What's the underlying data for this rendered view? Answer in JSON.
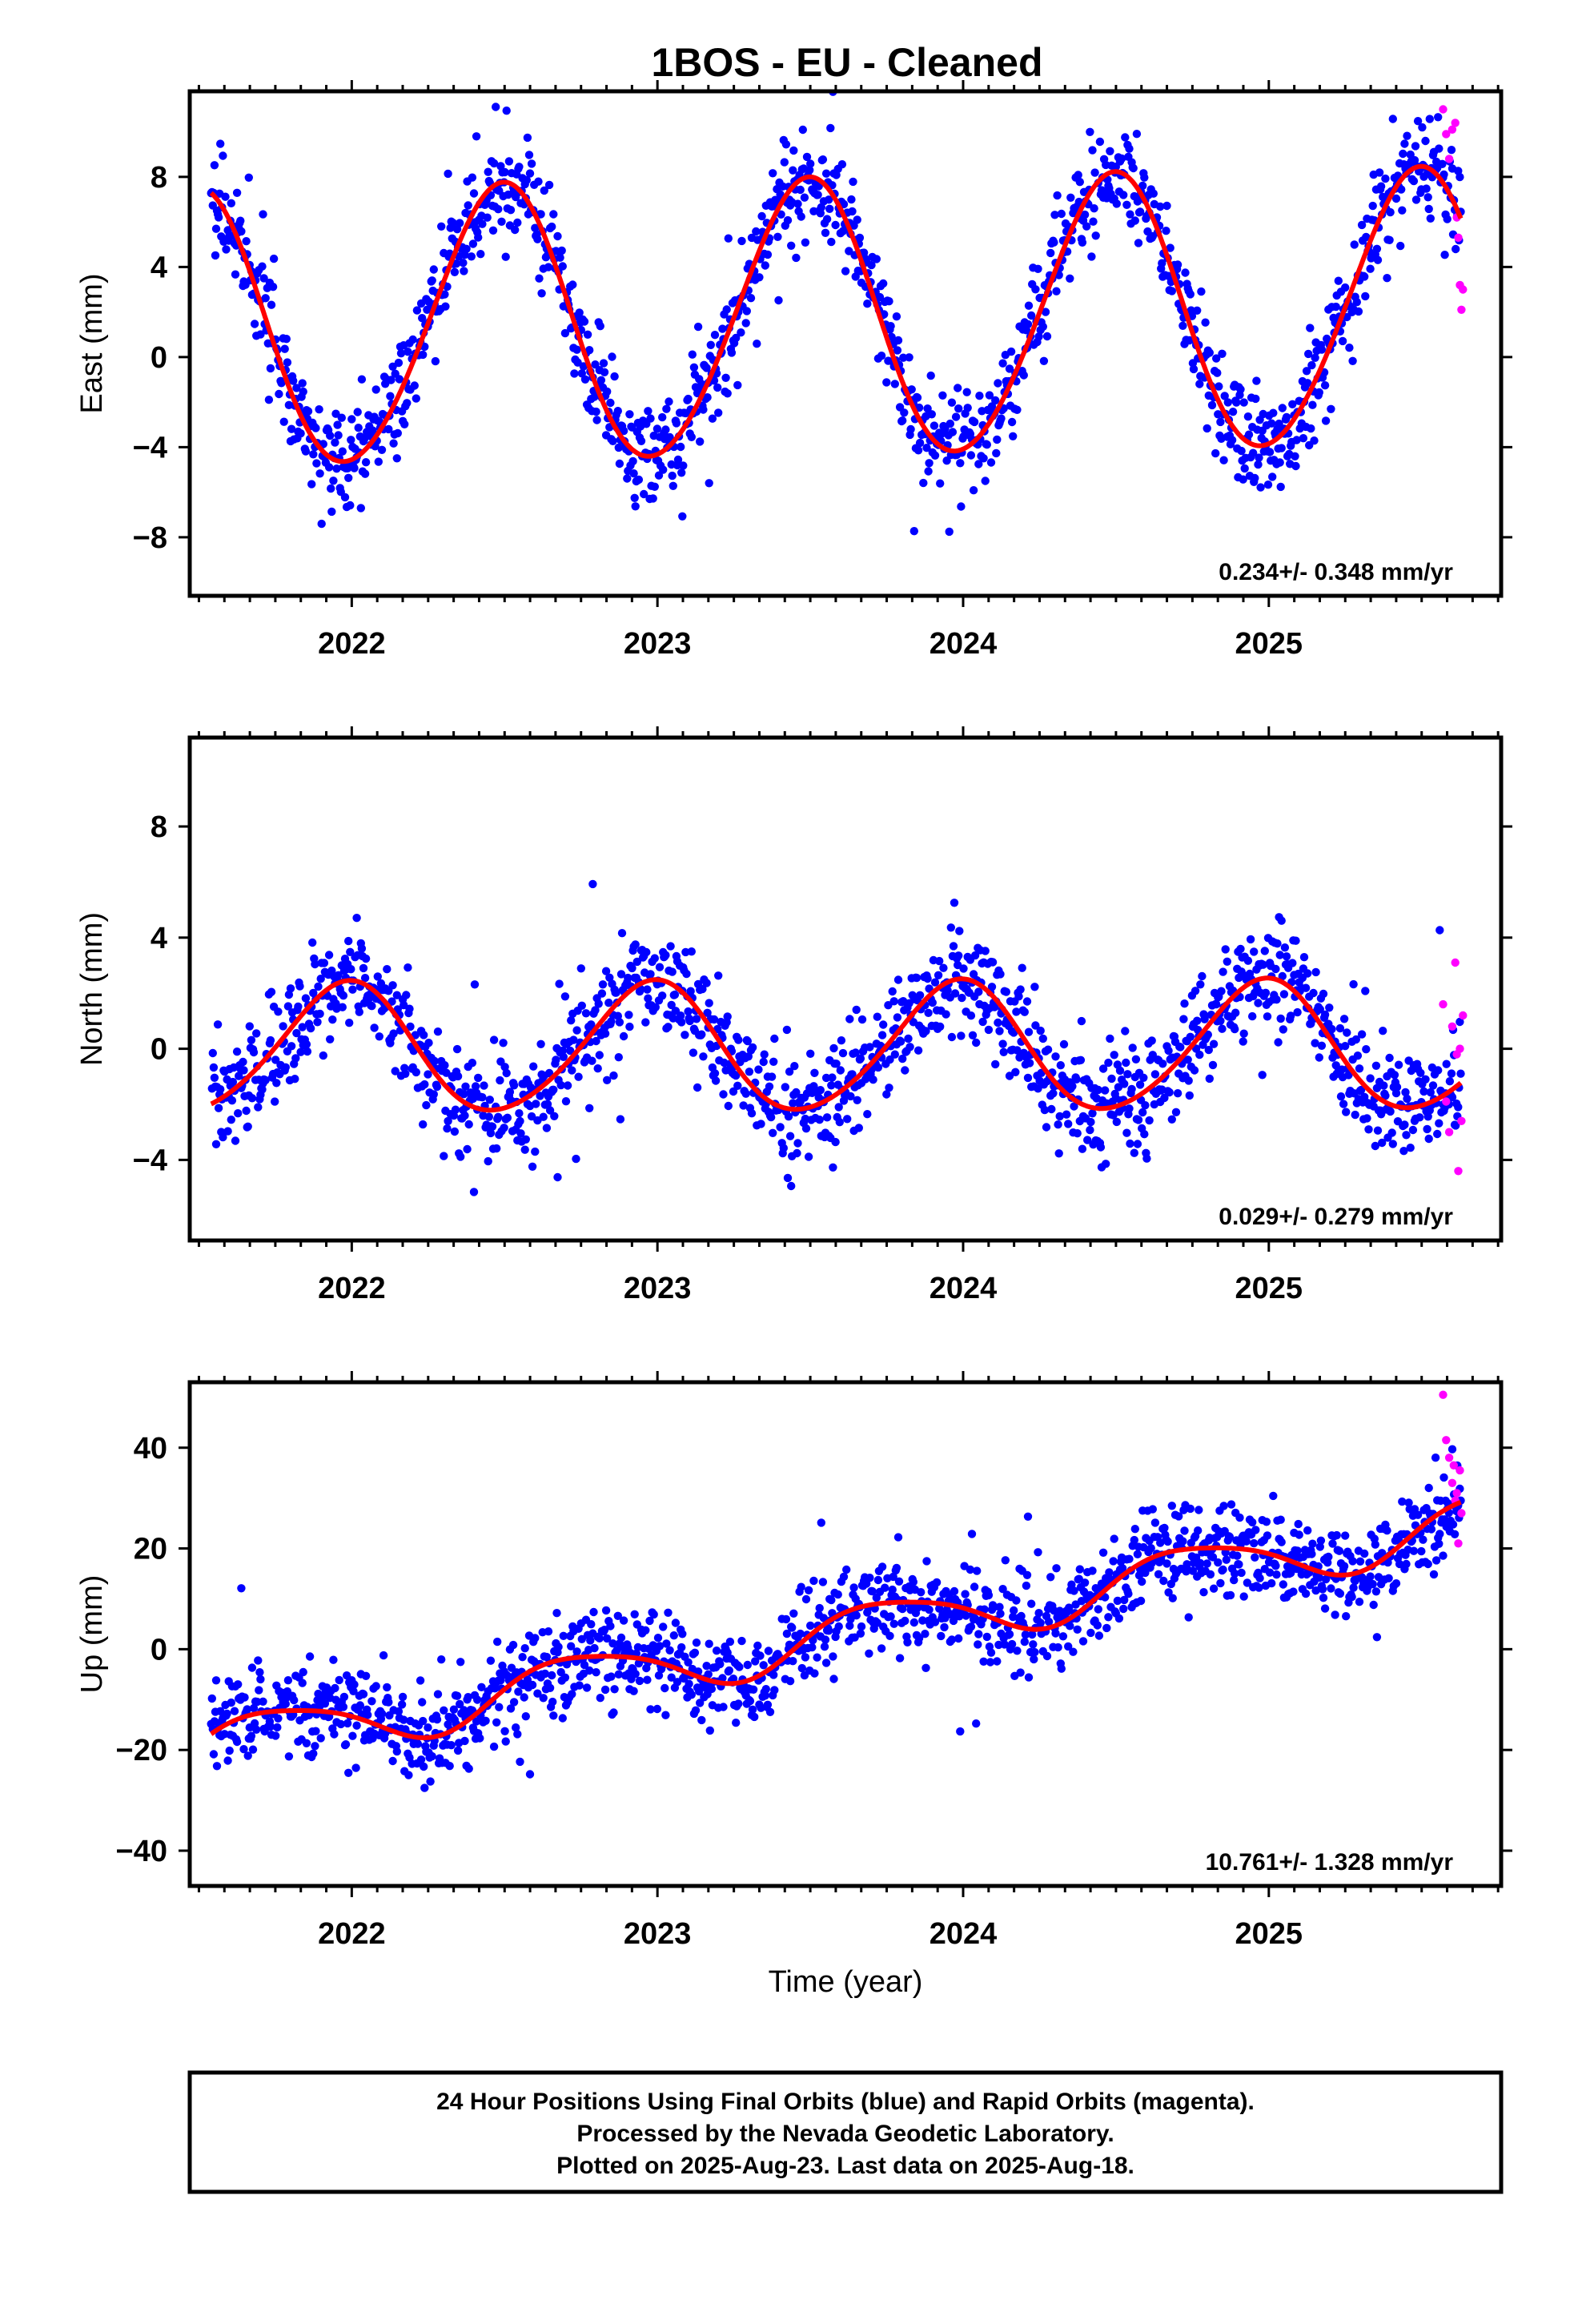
{
  "title": "1BOS  - EU - Cleaned",
  "colors": {
    "final": "#0000ff",
    "rapid": "#ff00ff",
    "model": "#ff0000",
    "frame": "#000000"
  },
  "legend": {
    "lines": [
      "24 Hour Positions Using Final Orbits (blue) and Rapid Orbits (magenta).",
      "Processed by the Nevada Geodetic Laboratory.",
      "Plotted on 2025-Aug-23. Last data on 2025-Aug-18."
    ]
  },
  "chart_data": [
    {
      "type": "scatter",
      "id": "east",
      "ylabel": "East (mm)",
      "xlabel": "",
      "xlim": [
        2021.47,
        2025.76
      ],
      "ylim": [
        -10.6,
        11.8
      ],
      "yticks": [
        -8,
        -4,
        0,
        4,
        8
      ],
      "xticks": [
        2022,
        2023,
        2024,
        2025
      ],
      "rate_label": "0.234+/- 0.348 mm/yr",
      "model": {
        "offset": 1.6,
        "trend": 0.234,
        "annual_cos": -6.1,
        "annual_sin": 0.5,
        "semi_cos": 0.3,
        "semi_sin": 0.2,
        "noise": 1.15,
        "t0": 2023.5,
        "start": 2021.54,
        "end": 2025.63
      },
      "rapid_points": [
        [
          2025.57,
          11.0
        ],
        [
          2025.58,
          9.9
        ],
        [
          2025.59,
          8.8
        ],
        [
          2025.6,
          10.1
        ],
        [
          2025.61,
          10.4
        ],
        [
          2025.615,
          6.2
        ],
        [
          2025.62,
          5.3
        ],
        [
          2025.625,
          3.2
        ],
        [
          2025.63,
          2.1
        ],
        [
          2025.635,
          3.0
        ]
      ]
    },
    {
      "type": "scatter",
      "id": "north",
      "ylabel": "North (mm)",
      "xlabel": "",
      "xlim": [
        2021.47,
        2025.76
      ],
      "ylim": [
        -6.9,
        11.2
      ],
      "yticks": [
        -4,
        0,
        4,
        8
      ],
      "xticks": [
        2022,
        2023,
        2024,
        2025
      ],
      "rate_label": "0.029+/- 0.279 mm/yr",
      "model": {
        "offset": 0.0,
        "trend": 0.029,
        "annual_cos": 2.3,
        "annual_sin": -0.3,
        "semi_cos": 0.2,
        "semi_sin": 0.1,
        "noise": 0.95,
        "t0": 2023.5,
        "start": 2021.54,
        "end": 2025.63
      },
      "rapid_points": [
        [
          2025.57,
          1.6
        ],
        [
          2025.58,
          -1.9
        ],
        [
          2025.59,
          -3.0
        ],
        [
          2025.6,
          0.8
        ],
        [
          2025.61,
          3.1
        ],
        [
          2025.615,
          -0.2
        ],
        [
          2025.62,
          -4.4
        ],
        [
          2025.625,
          0.0
        ],
        [
          2025.63,
          -2.6
        ],
        [
          2025.635,
          1.2
        ]
      ]
    },
    {
      "type": "scatter",
      "id": "up",
      "ylabel": "Up (mm)",
      "xlabel": "Time (year)",
      "xlim": [
        2021.47,
        2025.76
      ],
      "ylim": [
        -47,
        53
      ],
      "yticks": [
        -40,
        -20,
        0,
        20,
        40
      ],
      "xticks": [
        2022,
        2023,
        2024,
        2025
      ],
      "rate_label": "10.761+/- 1.328 mm/yr",
      "model": {
        "offset": 2.0,
        "trend": 10.761,
        "annual_cos": 0.0,
        "annual_sin": -5.3,
        "semi_cos": 0.8,
        "semi_sin": 0.5,
        "noise": 4.6,
        "t0": 2023.5,
        "start": 2021.54,
        "end": 2025.63
      },
      "rapid_points": [
        [
          2025.57,
          50.5
        ],
        [
          2025.58,
          41.5
        ],
        [
          2025.59,
          38.0
        ],
        [
          2025.6,
          33.0
        ],
        [
          2025.605,
          36.5
        ],
        [
          2025.61,
          29.5
        ],
        [
          2025.615,
          31.0
        ],
        [
          2025.62,
          21.0
        ],
        [
          2025.625,
          35.5
        ],
        [
          2025.63,
          27.0
        ]
      ]
    }
  ]
}
